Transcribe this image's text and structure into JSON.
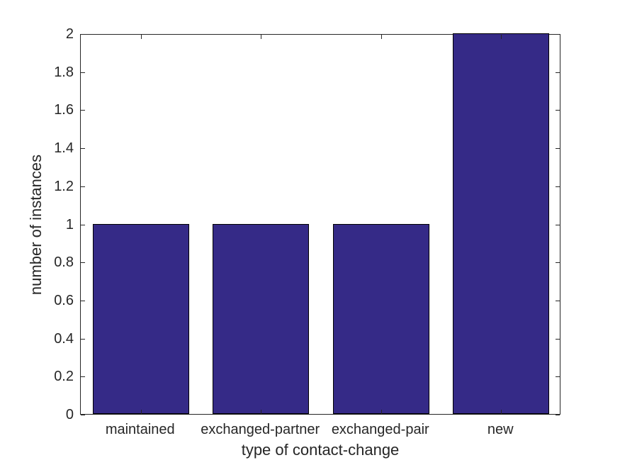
{
  "chart_data": {
    "type": "bar",
    "title": "",
    "categories": [
      "maintained",
      "exchanged-partner",
      "exchanged-pair",
      "new"
    ],
    "values": [
      1,
      1,
      1,
      2
    ],
    "xlabel": "type of contact-change",
    "ylabel": "number of instances",
    "ylim": [
      0,
      2
    ],
    "yticks": [
      0,
      0.2,
      0.4,
      0.6,
      0.8,
      1,
      1.2,
      1.4,
      1.6,
      1.8,
      2
    ],
    "ytick_labels": [
      "0",
      "0.2",
      "0.4",
      "0.6",
      "0.8",
      "1",
      "1.2",
      "1.4",
      "1.6",
      "1.8",
      "2"
    ],
    "bar_width_fraction": 0.8,
    "grid": false,
    "legend": null,
    "colors": {
      "bar_fill": "#352A87",
      "bar_edge": "#000000",
      "axis": "#262626",
      "text": "#262626",
      "background": "#FFFFFF"
    }
  }
}
